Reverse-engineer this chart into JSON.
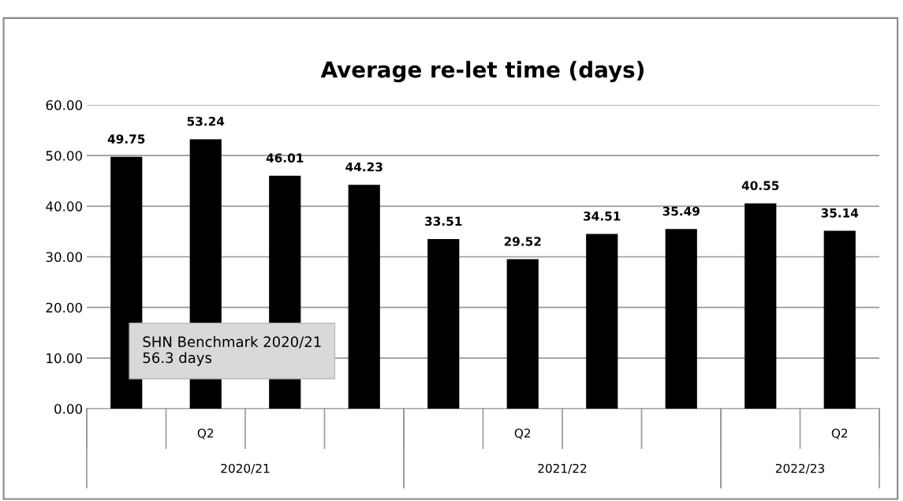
{
  "chart_data": {
    "type": "bar",
    "title": "Average re-let time (days)",
    "categories": [
      null,
      "Q2",
      null,
      null,
      null,
      "Q2",
      null,
      null,
      null,
      "Q2"
    ],
    "values": [
      49.75,
      53.24,
      46.01,
      44.23,
      33.51,
      29.52,
      34.51,
      35.49,
      40.55,
      35.14
    ],
    "color": "#000000",
    "ylim": [
      0,
      60
    ],
    "yticks": [
      {
        "value": 0,
        "label": "0.00"
      },
      {
        "value": 10,
        "label": "10.00"
      },
      {
        "value": 20,
        "label": "20.00"
      },
      {
        "value": 30,
        "label": "30.00"
      },
      {
        "value": 40,
        "label": "40.00"
      },
      {
        "value": 50,
        "label": "50.00"
      },
      {
        "value": 60,
        "label": "60.00"
      }
    ],
    "grid": "y",
    "data_labels": true,
    "annotations": [
      "2020/21",
      "2021/22",
      "2022/23",
      "SHN Benchmark 2020/21\n56.3 days"
    ]
  }
}
